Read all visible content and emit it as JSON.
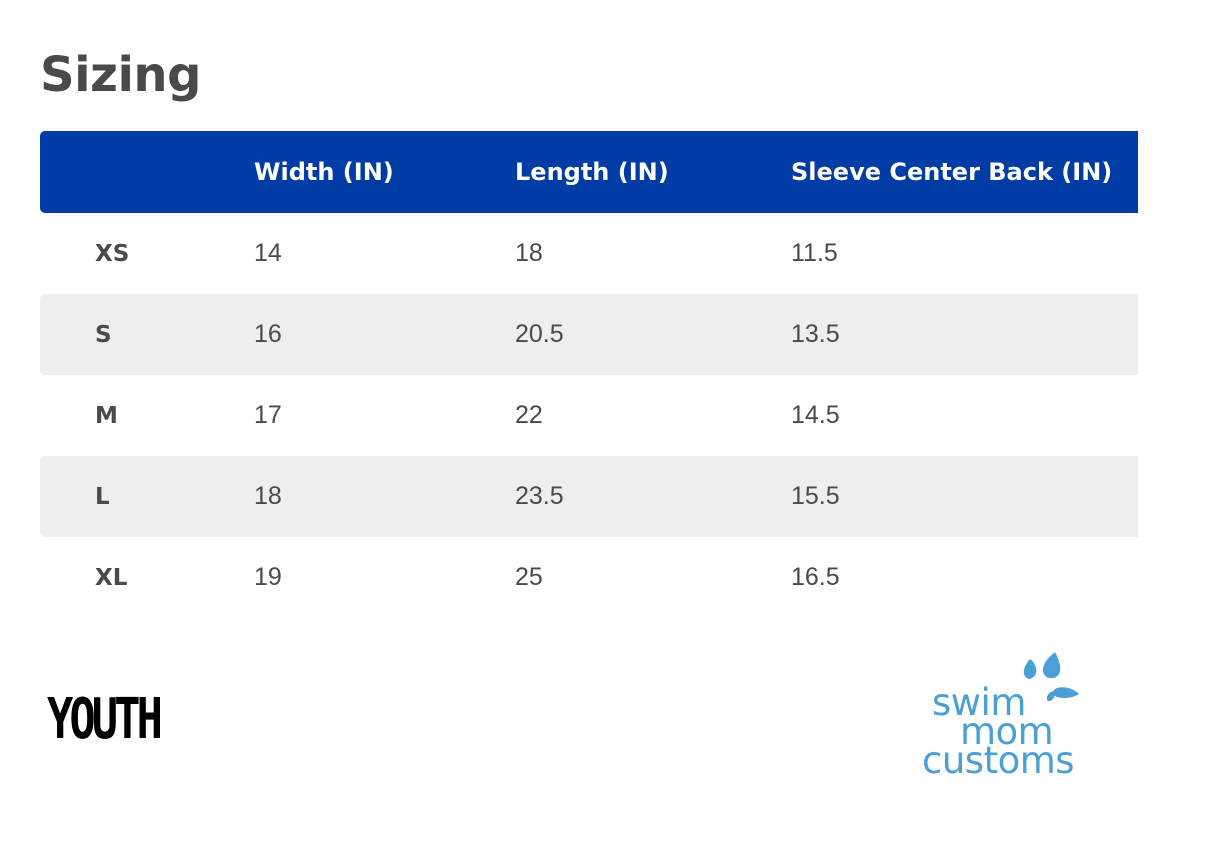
{
  "title": "Sizing",
  "table": {
    "headers": [
      "",
      "Width (IN)",
      "Length (IN)",
      "Sleeve Center Back (IN)"
    ],
    "rows": [
      [
        "XS",
        "14",
        "18",
        "11.5"
      ],
      [
        "S",
        "16",
        "20.5",
        "13.5"
      ],
      [
        "M",
        "17",
        "22",
        "14.5"
      ],
      [
        "L",
        "18",
        "23.5",
        "15.5"
      ],
      [
        "XL",
        "19",
        "25",
        "16.5"
      ]
    ]
  },
  "category_label": "YOUTH",
  "logo": {
    "lines": [
      "swim",
      "mom",
      "customs"
    ],
    "color": "#4a9fd6",
    "icon": "water-drops-icon"
  },
  "colors": {
    "header_bg": "#003ca6",
    "row_shade": "#efeded",
    "text": "#4a4a4a"
  }
}
